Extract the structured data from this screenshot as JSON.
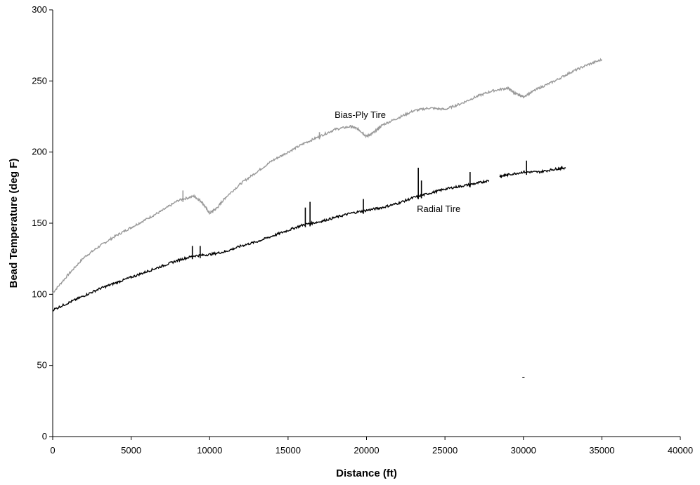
{
  "chart_data": {
    "type": "line",
    "title": "",
    "xlabel": "Distance (ft)",
    "ylabel": "Bead Temperature (deg F)",
    "xlim": [
      0,
      40000
    ],
    "ylim": [
      0,
      300
    ],
    "x_ticks": [
      0,
      5000,
      10000,
      15000,
      20000,
      25000,
      30000,
      35000,
      40000
    ],
    "y_ticks": [
      0,
      50,
      100,
      150,
      200,
      250,
      300
    ],
    "grid": false,
    "legend": "none",
    "series": [
      {
        "name": "Bias-Ply Tire",
        "color": "#999999",
        "points": [
          [
            0,
            101
          ],
          [
            1000,
            114
          ],
          [
            2000,
            126
          ],
          [
            3000,
            134
          ],
          [
            4000,
            141
          ],
          [
            5000,
            147
          ],
          [
            6000,
            153
          ],
          [
            7000,
            159
          ],
          [
            8000,
            166
          ],
          [
            9000,
            169
          ],
          [
            9500,
            165
          ],
          [
            10000,
            157
          ],
          [
            10500,
            161
          ],
          [
            11000,
            168
          ],
          [
            12000,
            178
          ],
          [
            13000,
            186
          ],
          [
            14000,
            194
          ],
          [
            15000,
            200
          ],
          [
            16000,
            206
          ],
          [
            17000,
            211
          ],
          [
            18000,
            216
          ],
          [
            19000,
            218
          ],
          [
            19500,
            216
          ],
          [
            20000,
            211
          ],
          [
            20500,
            214
          ],
          [
            21000,
            219
          ],
          [
            22000,
            224
          ],
          [
            23000,
            229
          ],
          [
            24000,
            231
          ],
          [
            25000,
            230
          ],
          [
            26000,
            234
          ],
          [
            27000,
            239
          ],
          [
            28000,
            243
          ],
          [
            29000,
            245
          ],
          [
            29500,
            241
          ],
          [
            30000,
            239
          ],
          [
            31000,
            245
          ],
          [
            32000,
            250
          ],
          [
            33000,
            256
          ],
          [
            34000,
            261
          ],
          [
            35000,
            265
          ]
        ],
        "spikes": [
          [
            8300,
            173
          ],
          [
            17000,
            214
          ]
        ]
      },
      {
        "name": "Radial Tire",
        "color": "#000000",
        "points": [
          [
            0,
            89
          ],
          [
            1000,
            94
          ],
          [
            2000,
            99
          ],
          [
            3000,
            104
          ],
          [
            4000,
            108
          ],
          [
            5000,
            112
          ],
          [
            6000,
            116
          ],
          [
            7000,
            120
          ],
          [
            8000,
            124
          ],
          [
            9000,
            127
          ],
          [
            10000,
            128
          ],
          [
            11000,
            130
          ],
          [
            12000,
            134
          ],
          [
            13000,
            137
          ],
          [
            14000,
            141
          ],
          [
            15000,
            145
          ],
          [
            16000,
            149
          ],
          [
            17000,
            151
          ],
          [
            18000,
            154
          ],
          [
            19000,
            157
          ],
          [
            20000,
            159
          ],
          [
            21000,
            161
          ],
          [
            22000,
            164
          ],
          [
            23000,
            168
          ],
          [
            24000,
            171
          ],
          [
            25000,
            174
          ],
          [
            26000,
            176
          ],
          [
            27000,
            178
          ],
          [
            27800,
            180
          ]
        ],
        "segment2": [
          [
            28500,
            183
          ],
          [
            29000,
            184
          ],
          [
            30000,
            186
          ],
          [
            31000,
            186
          ],
          [
            32000,
            188
          ],
          [
            32700,
            189
          ]
        ],
        "spikes": [
          [
            8900,
            134
          ],
          [
            9400,
            134
          ],
          [
            16100,
            161
          ],
          [
            16400,
            165
          ],
          [
            19800,
            167
          ],
          [
            23300,
            189
          ],
          [
            23500,
            180
          ],
          [
            26600,
            186
          ],
          [
            30200,
            194
          ]
        ]
      }
    ],
    "annotations": [
      {
        "text": "Bias-Ply Tire",
        "x": 19600,
        "y": 224
      },
      {
        "text": "Radial Tire",
        "x": 24600,
        "y": 158
      },
      {
        "text": "-",
        "x": 30000,
        "y": 40
      }
    ]
  }
}
